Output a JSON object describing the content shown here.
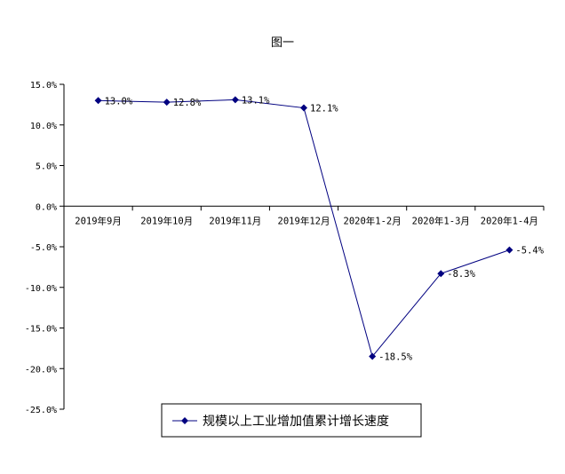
{
  "chart_data": {
    "type": "line",
    "title": "图一",
    "xlabel": "",
    "ylabel": "",
    "categories": [
      "2019年9月",
      "2019年10月",
      "2019年11月",
      "2019年12月",
      "2020年1-2月",
      "2020年1-3月",
      "2020年1-4月"
    ],
    "series": [
      {
        "name": "规模以上工业增加值累计增长速度",
        "values": [
          13.0,
          12.8,
          13.1,
          12.1,
          -18.5,
          -8.3,
          -5.4
        ],
        "labels": [
          "13.0%",
          "12.8%",
          "13.1%",
          "12.1%",
          "-18.5%",
          "-8.3%",
          "-5.4%"
        ],
        "color": "#000080"
      }
    ],
    "ylim": [
      -25,
      15
    ],
    "yticks": [
      15,
      10,
      5,
      0,
      -5,
      -10,
      -15,
      -20,
      -25
    ],
    "ytick_labels": [
      "15.0%",
      "10.0%",
      "5.0%",
      "0.0%",
      "-5.0%",
      "-10.0%",
      "-15.0%",
      "-20.0%",
      "-25.0%"
    ],
    "grid": false,
    "legend_position": "bottom"
  }
}
